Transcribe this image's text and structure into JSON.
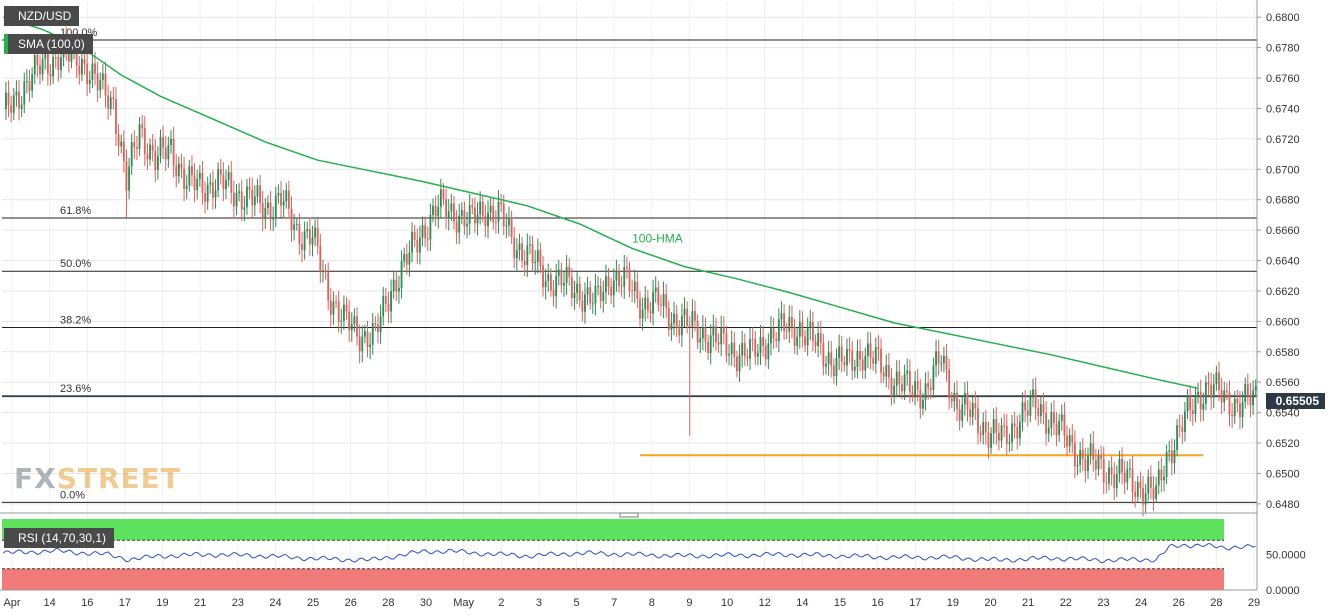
{
  "instrument": "NZD/USD",
  "indicator_sma": "SMA (100,0)",
  "indicator_rsi": "RSI (14,70,30,1)",
  "watermark": {
    "part1": "FX",
    "part2": "STREET"
  },
  "current_price": "0.65505",
  "colors": {
    "up": "#2e8b57",
    "down": "#e0605c",
    "hma": "#22b14c",
    "rsi": "#3050c8",
    "rsi_high_zone": "#5de35d",
    "rsi_low_zone": "#f17b78",
    "support_line": "#f5a623",
    "axis_text": "#333333"
  },
  "chart_data": {
    "type": "candlestick",
    "title": "",
    "price_axis": {
      "ticks": [
        "0.6800",
        "0.6780",
        "0.6760",
        "0.6740",
        "0.6720",
        "0.6700",
        "0.6680",
        "0.6660",
        "0.6640",
        "0.6620",
        "0.6600",
        "0.6580",
        "0.6560",
        "0.6540",
        "0.6520",
        "0.6500",
        "0.6480"
      ],
      "range": [
        0.6474,
        0.681
      ]
    },
    "time_axis_labels": [
      "Apr",
      "14",
      "16",
      "17",
      "19",
      "21",
      "23",
      "24",
      "25",
      "26",
      "28",
      "30",
      "May",
      "2",
      "3",
      "5",
      "7",
      "8",
      "9",
      "10",
      "12",
      "14",
      "15",
      "16",
      "17",
      "19",
      "20",
      "21",
      "22",
      "23",
      "24",
      "26",
      "28",
      "29"
    ],
    "fibonacci_levels": [
      {
        "label": "100.0%",
        "price": 0.6785
      },
      {
        "label": "61.8%",
        "price": 0.6668
      },
      {
        "label": "50.0%",
        "price": 0.6633
      },
      {
        "label": "38.2%",
        "price": 0.6596
      },
      {
        "label": "23.6%",
        "price": 0.6551
      },
      {
        "label": "0.0%",
        "price": 0.6481
      }
    ],
    "hma_label": "100-HMA",
    "hma": [
      [
        0,
        0.68
      ],
      [
        15,
        0.6792
      ],
      [
        30,
        0.678
      ],
      [
        45,
        0.6762
      ],
      [
        60,
        0.6748
      ],
      [
        80,
        0.6733
      ],
      [
        100,
        0.6718
      ],
      [
        120,
        0.6706
      ],
      [
        140,
        0.6699
      ],
      [
        160,
        0.6692
      ],
      [
        180,
        0.6684
      ],
      [
        200,
        0.6676
      ],
      [
        220,
        0.6664
      ],
      [
        240,
        0.6648
      ],
      [
        260,
        0.6636
      ],
      [
        280,
        0.6628
      ],
      [
        300,
        0.6619
      ],
      [
        320,
        0.6609
      ],
      [
        340,
        0.6599
      ],
      [
        360,
        0.6592
      ],
      [
        380,
        0.6585
      ],
      [
        400,
        0.6578
      ],
      [
        420,
        0.657
      ],
      [
        440,
        0.6562
      ],
      [
        456,
        0.6556
      ]
    ],
    "support_line": {
      "price": 0.6512,
      "from_index": 243,
      "to_index": 458
    },
    "anchors": [
      [
        0,
        0.6735
      ],
      [
        8,
        0.6755
      ],
      [
        16,
        0.677
      ],
      [
        22,
        0.6775
      ],
      [
        30,
        0.6772
      ],
      [
        36,
        0.6755
      ],
      [
        42,
        0.6745
      ],
      [
        47,
        0.669
      ],
      [
        52,
        0.6728
      ],
      [
        58,
        0.6705
      ],
      [
        64,
        0.6715
      ],
      [
        70,
        0.669
      ],
      [
        76,
        0.669
      ],
      [
        84,
        0.669
      ],
      [
        92,
        0.6682
      ],
      [
        100,
        0.6675
      ],
      [
        106,
        0.668
      ],
      [
        112,
        0.666
      ],
      [
        118,
        0.6655
      ],
      [
        124,
        0.662
      ],
      [
        130,
        0.66
      ],
      [
        136,
        0.6592
      ],
      [
        142,
        0.659
      ],
      [
        148,
        0.6622
      ],
      [
        154,
        0.664
      ],
      [
        160,
        0.666
      ],
      [
        166,
        0.6675
      ],
      [
        172,
        0.6672
      ],
      [
        178,
        0.6665
      ],
      [
        184,
        0.6675
      ],
      [
        190,
        0.6668
      ],
      [
        196,
        0.665
      ],
      [
        202,
        0.664
      ],
      [
        208,
        0.6628
      ],
      [
        214,
        0.6625
      ],
      [
        220,
        0.662
      ],
      [
        226,
        0.6612
      ],
      [
        232,
        0.663
      ],
      [
        238,
        0.6625
      ],
      [
        244,
        0.6612
      ],
      [
        250,
        0.6612
      ],
      [
        256,
        0.6602
      ],
      [
        262,
        0.6597
      ],
      [
        268,
        0.6592
      ],
      [
        274,
        0.6585
      ],
      [
        280,
        0.658
      ],
      [
        286,
        0.6578
      ],
      [
        292,
        0.659
      ],
      [
        298,
        0.6595
      ],
      [
        304,
        0.6596
      ],
      [
        310,
        0.6585
      ],
      [
        316,
        0.6575
      ],
      [
        322,
        0.6572
      ],
      [
        328,
        0.658
      ],
      [
        334,
        0.6572
      ],
      [
        340,
        0.6562
      ],
      [
        346,
        0.6555
      ],
      [
        352,
        0.6555
      ],
      [
        358,
        0.6575
      ],
      [
        364,
        0.6545
      ],
      [
        370,
        0.6538
      ],
      [
        376,
        0.6528
      ],
      [
        382,
        0.6522
      ],
      [
        388,
        0.6538
      ],
      [
        394,
        0.6545
      ],
      [
        400,
        0.6535
      ],
      [
        406,
        0.6522
      ],
      [
        412,
        0.651
      ],
      [
        418,
        0.6505
      ],
      [
        424,
        0.65
      ],
      [
        430,
        0.6495
      ],
      [
        436,
        0.649
      ],
      [
        440,
        0.6485
      ],
      [
        444,
        0.6512
      ],
      [
        448,
        0.6525
      ],
      [
        452,
        0.6538
      ],
      [
        456,
        0.6552
      ],
      [
        460,
        0.6557
      ],
      [
        466,
        0.655
      ],
      [
        472,
        0.6545
      ],
      [
        478,
        0.655
      ]
    ],
    "rsi": {
      "label": "RSI (14,70,30,1)",
      "ticks": [
        "50.0000",
        "0.0000"
      ],
      "range": [
        0,
        100
      ],
      "overbought": 70,
      "oversold": 30,
      "values": [
        [
          0,
          52
        ],
        [
          20,
          55
        ],
        [
          40,
          50
        ],
        [
          48,
          43
        ],
        [
          60,
          48
        ],
        [
          80,
          50
        ],
        [
          100,
          48
        ],
        [
          120,
          44
        ],
        [
          140,
          42
        ],
        [
          150,
          48
        ],
        [
          160,
          54
        ],
        [
          170,
          55
        ],
        [
          180,
          52
        ],
        [
          190,
          50
        ],
        [
          200,
          48
        ],
        [
          220,
          52
        ],
        [
          240,
          50
        ],
        [
          260,
          48
        ],
        [
          280,
          49
        ],
        [
          300,
          50
        ],
        [
          320,
          48
        ],
        [
          340,
          46
        ],
        [
          360,
          46
        ],
        [
          380,
          42
        ],
        [
          400,
          45
        ],
        [
          420,
          42
        ],
        [
          440,
          43
        ],
        [
          445,
          60
        ],
        [
          452,
          63
        ],
        [
          458,
          64
        ],
        [
          466,
          58
        ],
        [
          472,
          62
        ],
        [
          478,
          62
        ]
      ]
    }
  }
}
